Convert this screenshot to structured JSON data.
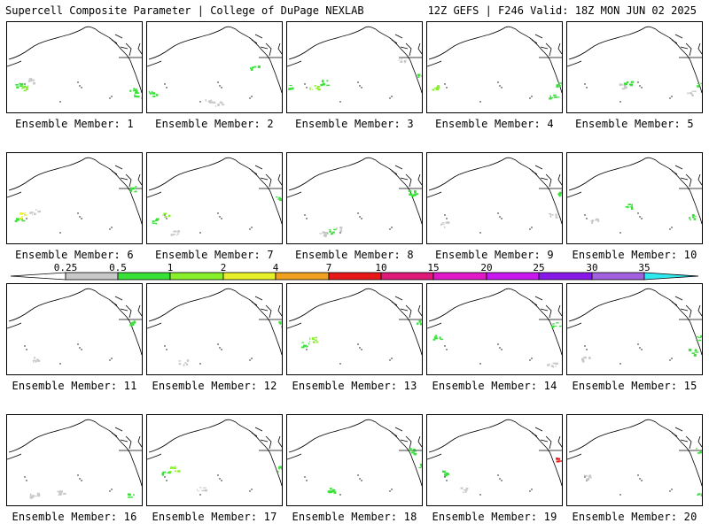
{
  "header": {
    "title": "Supercell Composite Parameter | College of DuPage NEXLAB",
    "run_info": "12Z GEFS | F246 Valid: 18Z MON JUN 02 2025"
  },
  "panels": [
    {
      "member": 1,
      "label": "Ensemble Member: 1"
    },
    {
      "member": 2,
      "label": "Ensemble Member: 2"
    },
    {
      "member": 3,
      "label": "Ensemble Member: 3"
    },
    {
      "member": 4,
      "label": "Ensemble Member: 4"
    },
    {
      "member": 5,
      "label": "Ensemble Member: 5"
    },
    {
      "member": 6,
      "label": "Ensemble Member: 6"
    },
    {
      "member": 7,
      "label": "Ensemble Member: 7"
    },
    {
      "member": 8,
      "label": "Ensemble Member: 8"
    },
    {
      "member": 9,
      "label": "Ensemble Member: 9"
    },
    {
      "member": 10,
      "label": "Ensemble Member: 10"
    },
    {
      "member": 11,
      "label": "Ensemble Member: 11"
    },
    {
      "member": 12,
      "label": "Ensemble Member: 12"
    },
    {
      "member": 13,
      "label": "Ensemble Member: 13"
    },
    {
      "member": 14,
      "label": "Ensemble Member: 14"
    },
    {
      "member": 15,
      "label": "Ensemble Member: 15"
    },
    {
      "member": 16,
      "label": "Ensemble Member: 16"
    },
    {
      "member": 17,
      "label": "Ensemble Member: 17"
    },
    {
      "member": 18,
      "label": "Ensemble Member: 18"
    },
    {
      "member": 19,
      "label": "Ensemble Member: 19"
    },
    {
      "member": 20,
      "label": "Ensemble Member: 20"
    }
  ],
  "colorbar": {
    "labels": [
      "0.25",
      "0.5",
      "1",
      "2",
      "4",
      "7",
      "10",
      "15",
      "20",
      "25",
      "30",
      "35"
    ],
    "colors": [
      "#c8c8c8",
      "#38e038",
      "#88f028",
      "#e8f028",
      "#f0a020",
      "#e81818",
      "#e01878",
      "#e018c8",
      "#c818f0",
      "#8818e8",
      "#a060e0",
      "#30e8f0"
    ]
  }
}
